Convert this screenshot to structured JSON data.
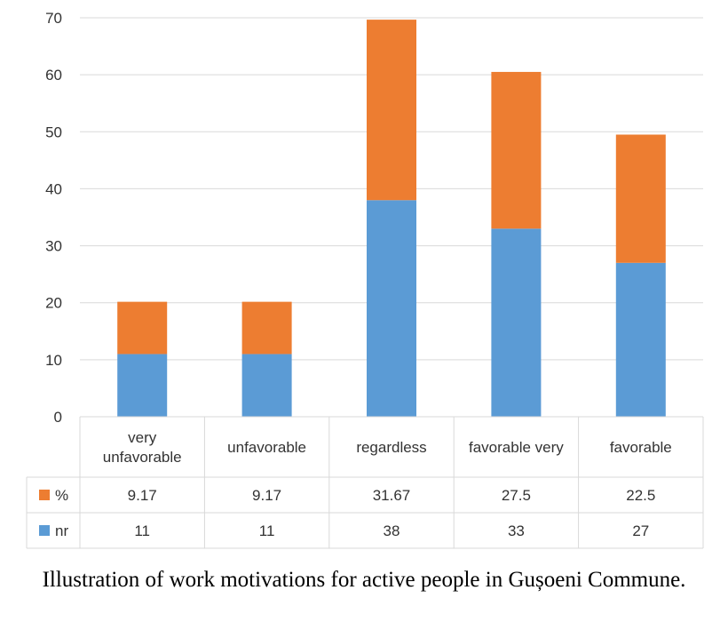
{
  "chart_data": {
    "type": "bar",
    "stacked": true,
    "categories": [
      [
        "very",
        "unfavorable"
      ],
      [
        "unfavorable"
      ],
      [
        "regardless"
      ],
      [
        "favorable very"
      ],
      [
        "favorable"
      ]
    ],
    "series": [
      {
        "name": "nr",
        "color": "#5B9BD5",
        "values": [
          11,
          11,
          38,
          33,
          27
        ]
      },
      {
        "name": "%",
        "color": "#ED7D31",
        "values": [
          9.17,
          9.17,
          31.67,
          27.5,
          22.5
        ]
      }
    ],
    "table_rows": [
      {
        "name": "%",
        "color": "#ED7D31",
        "values": [
          "9.17",
          "9.17",
          "31.67",
          "27.5",
          "22.5"
        ]
      },
      {
        "name": "nr",
        "color": "#5B9BD5",
        "values": [
          "11",
          "11",
          "38",
          "33",
          "27"
        ]
      }
    ],
    "ylim": [
      0,
      70
    ],
    "yticks": [
      "0",
      "10",
      "20",
      "30",
      "40",
      "50",
      "60",
      "70"
    ],
    "grid": true,
    "data_table": true
  },
  "caption": "Illustration of work motivations for active people in Gușoeni Commune."
}
